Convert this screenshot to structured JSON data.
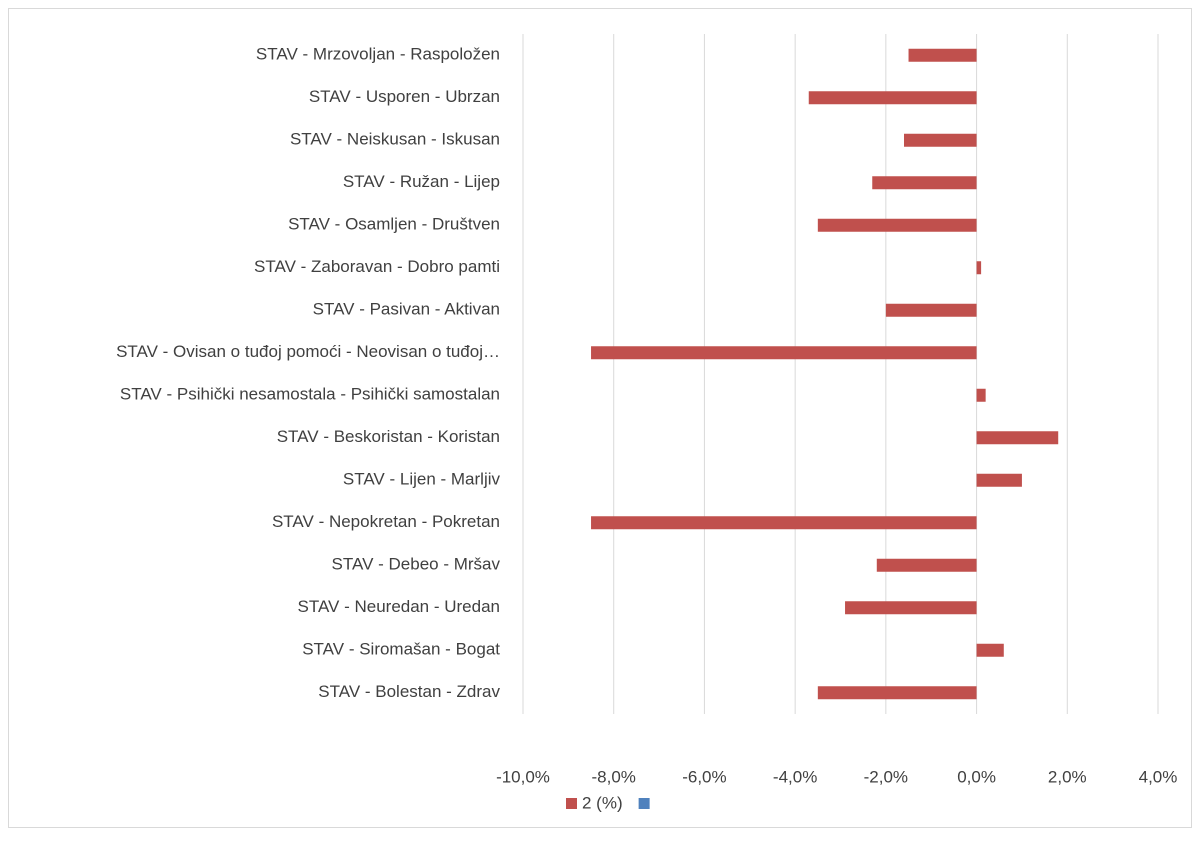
{
  "chart_data": {
    "type": "bar",
    "orientation": "horizontal",
    "categories": [
      "STAV - Mrzovoljan - Raspoložen",
      "STAV - Usporen - Ubrzan",
      "STAV - Neiskusan - Iskusan",
      "STAV - Ružan - Lijep",
      "STAV - Osamljen - Društven",
      "STAV - Zaboravan - Dobro pamti",
      "STAV - Pasivan - Aktivan",
      "STAV - Ovisan o tuđoj pomoći - Neovisan o tuđoj…",
      "STAV - Psihički nesamostala - Psihički samostalan",
      "STAV - Beskoristan - Koristan",
      "STAV - Lijen - Marljiv",
      "STAV - Nepokretan - Pokretan",
      "STAV - Debeo - Mršav",
      "STAV - Neuredan - Uredan",
      "STAV - Siromašan - Bogat",
      "STAV - Bolestan - Zdrav"
    ],
    "series": [
      {
        "name": "2 (%)",
        "color": "#c0504d",
        "values": [
          -1.5,
          -3.7,
          -1.6,
          -2.3,
          -3.5,
          0.1,
          -2.0,
          -8.5,
          0.2,
          1.8,
          1.0,
          -8.5,
          -2.2,
          -2.9,
          0.6,
          -3.5
        ]
      },
      {
        "color": "#4f81bd",
        "values": [
          null,
          null,
          null,
          null,
          null,
          null,
          null,
          null,
          null,
          null,
          null,
          null,
          null,
          null,
          null,
          null
        ]
      }
    ],
    "xlim": [
      -10,
      4
    ],
    "xticks": [
      {
        "value": -10,
        "label": "-10,0%"
      },
      {
        "value": -8,
        "label": "-8,0%"
      },
      {
        "value": -6,
        "label": "-6,0%"
      },
      {
        "value": -4,
        "label": "-4,0%"
      },
      {
        "value": -2,
        "label": "-2,0%"
      },
      {
        "value": 0,
        "label": "0,0%"
      },
      {
        "value": 2,
        "label": "2,0%"
      },
      {
        "value": 4,
        "label": "4,0%"
      }
    ],
    "grid": true,
    "legend": "bottom"
  }
}
